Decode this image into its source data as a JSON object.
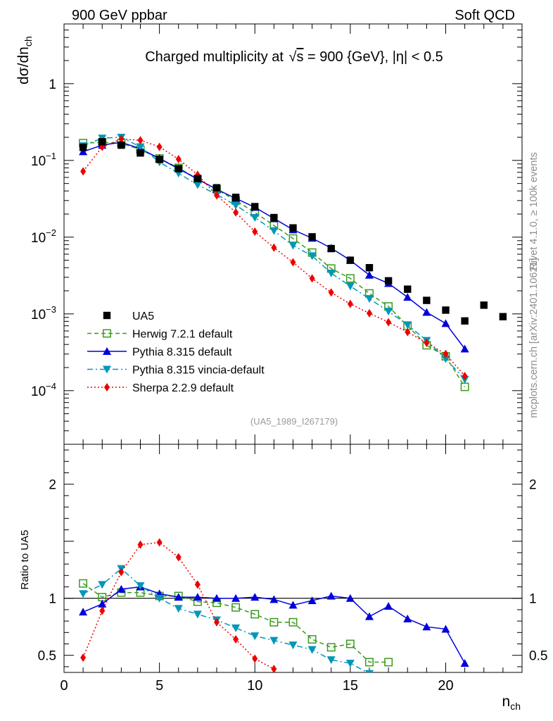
{
  "header": {
    "left_label": "900 GeV ppbar",
    "right_label": "Soft QCD"
  },
  "side_labels": {
    "rivet": "Rivet 4.1.0, ≥ 100k events",
    "mcplots": "mcplots.cern.ch [arXiv:2401.10621]"
  },
  "chart_data": [
    {
      "type": "scatter",
      "panel": "main",
      "title_prefix": "Charged multiplicity at ",
      "title_sqrt": "s",
      "title_suffix": " = 900 {GeV}, |η| < 0.5",
      "ylabel_main": "dσ/dn",
      "ylabel_sub": "ch",
      "yscale": "log",
      "ylim": [
        2e-05,
        6
      ],
      "xlim": [
        0,
        24
      ],
      "analysis_tag": "(UA5_1989_I267179)",
      "y_ticks": [
        {
          "value": 1,
          "label": "1",
          "base": "",
          "exp": ""
        },
        {
          "value": 0.1,
          "label": "",
          "base": "10",
          "exp": "−1"
        },
        {
          "value": 0.01,
          "label": "",
          "base": "10",
          "exp": "−2"
        },
        {
          "value": 0.001,
          "label": "",
          "base": "10",
          "exp": "−3"
        },
        {
          "value": 0.0001,
          "label": "",
          "base": "10",
          "exp": "−4"
        }
      ],
      "series": [
        {
          "name": "UA5",
          "color": "#000000",
          "marker": "square-filled",
          "line": "none",
          "x": [
            1,
            2,
            3,
            4,
            5,
            6,
            7,
            8,
            9,
            10,
            11,
            12,
            13,
            14,
            15,
            16,
            17,
            18,
            19,
            20,
            21,
            22,
            23
          ],
          "y": [
            0.148,
            0.175,
            0.158,
            0.125,
            0.103,
            0.078,
            0.058,
            0.044,
            0.033,
            0.025,
            0.018,
            0.0132,
            0.0101,
            0.0071,
            0.005,
            0.004,
            0.0027,
            0.0021,
            0.0015,
            0.00112,
            0.00081,
            0.0013,
            0.00092
          ]
        },
        {
          "name": "Herwig 7.2.1 default",
          "color": "#3a9a1c",
          "marker": "square-open",
          "line": "dashed",
          "x": [
            1,
            2,
            3,
            4,
            5,
            6,
            7,
            8,
            9,
            10,
            11,
            12,
            13,
            14,
            15,
            16,
            17,
            18,
            19,
            20,
            21
          ],
          "y": [
            0.168,
            0.172,
            0.168,
            0.138,
            0.106,
            0.08,
            0.057,
            0.042,
            0.03,
            0.021,
            0.0142,
            0.0096,
            0.0063,
            0.0039,
            0.0029,
            0.00185,
            0.00125,
            0.0007,
            0.00039,
            0.00028,
            0.000112
          ]
        },
        {
          "name": "Pythia 8.315 default",
          "color": "#0000dd",
          "marker": "triangle-up",
          "line": "solid",
          "x": [
            1,
            2,
            3,
            4,
            5,
            6,
            7,
            8,
            9,
            10,
            11,
            12,
            13,
            14,
            15,
            16,
            17,
            18,
            19,
            20,
            21
          ],
          "y": [
            0.13,
            0.158,
            0.172,
            0.142,
            0.106,
            0.078,
            0.057,
            0.042,
            0.032,
            0.0245,
            0.0175,
            0.0125,
            0.0097,
            0.0072,
            0.005,
            0.0032,
            0.0025,
            0.00165,
            0.00105,
            0.00075,
            0.00035
          ]
        },
        {
          "name": "Pythia 8.315 vincia-default",
          "color": "#0097b8",
          "marker": "triangle-down",
          "line": "dashdot",
          "x": [
            1,
            2,
            3,
            4,
            5,
            6,
            7,
            8,
            9,
            10,
            11,
            12,
            13,
            14,
            15,
            16,
            17,
            18,
            19,
            20,
            21
          ],
          "y": [
            0.155,
            0.195,
            0.2,
            0.15,
            0.095,
            0.068,
            0.048,
            0.036,
            0.026,
            0.018,
            0.0121,
            0.0078,
            0.0057,
            0.0034,
            0.0023,
            0.00158,
            0.00108,
            0.00072,
            0.00045,
            0.00026,
            0.00014
          ]
        },
        {
          "name": "Sherpa 2.2.9 default",
          "color": "#ee0000",
          "marker": "diamond",
          "line": "dotted",
          "x": [
            1,
            2,
            3,
            4,
            5,
            6,
            7,
            8,
            9,
            10,
            11,
            12,
            13,
            14,
            15,
            16,
            17,
            18,
            19,
            20,
            21
          ],
          "y": [
            0.072,
            0.15,
            0.19,
            0.183,
            0.15,
            0.104,
            0.065,
            0.035,
            0.021,
            0.0118,
            0.0073,
            0.0047,
            0.0029,
            0.0019,
            0.00135,
            0.00102,
            0.00078,
            0.00058,
            0.00042,
            0.0003,
            0.000155
          ]
        }
      ]
    },
    {
      "type": "scatter",
      "panel": "ratio",
      "ylabel": "Ratio to UA5",
      "xlabel_main": "n",
      "xlabel_sub": "ch",
      "ylim": [
        0.35,
        2.35
      ],
      "xlim": [
        0,
        24
      ],
      "reference_line": 1,
      "x_ticks": [
        0,
        5,
        10,
        15,
        20
      ],
      "y_ticks": [
        0.5,
        1,
        2
      ],
      "series": [
        {
          "name": "Herwig 7.2.1 default",
          "x": [
            1,
            2,
            3,
            4,
            5,
            6,
            7,
            8,
            9,
            10,
            11,
            12,
            13,
            14,
            15,
            16,
            17
          ],
          "y": [
            1.13,
            1.01,
            1.05,
            1.05,
            1.02,
            1.02,
            0.97,
            0.96,
            0.92,
            0.86,
            0.79,
            0.79,
            0.64,
            0.57,
            0.6,
            0.44,
            0.44
          ]
        },
        {
          "name": "Pythia 8.315 default",
          "x": [
            1,
            2,
            3,
            4,
            5,
            6,
            7,
            8,
            9,
            10,
            11,
            12,
            13,
            14,
            15,
            16,
            17,
            18,
            19,
            20,
            21
          ],
          "y": [
            0.88,
            0.95,
            1.08,
            1.1,
            1.04,
            1.01,
            1.01,
            1.0,
            1.0,
            1.01,
            0.99,
            0.94,
            0.98,
            1.02,
            1.0,
            0.84,
            0.93,
            0.82,
            0.75,
            0.73,
            0.43
          ]
        },
        {
          "name": "Pythia 8.315 vincia-default",
          "x": [
            1,
            2,
            3,
            4,
            5,
            6,
            7,
            8,
            9,
            10,
            11,
            12,
            13,
            14,
            15,
            16
          ],
          "y": [
            1.04,
            1.12,
            1.26,
            1.11,
            1.0,
            0.91,
            0.86,
            0.81,
            0.74,
            0.67,
            0.63,
            0.59,
            0.55,
            0.46,
            0.43,
            0.34
          ]
        },
        {
          "name": "Sherpa 2.2.9 default",
          "x": [
            1,
            2,
            3,
            4,
            5,
            6,
            7,
            8,
            9,
            10,
            11
          ],
          "y": [
            0.48,
            0.89,
            1.23,
            1.47,
            1.49,
            1.36,
            1.12,
            0.79,
            0.64,
            0.47,
            0.38
          ]
        }
      ]
    }
  ]
}
